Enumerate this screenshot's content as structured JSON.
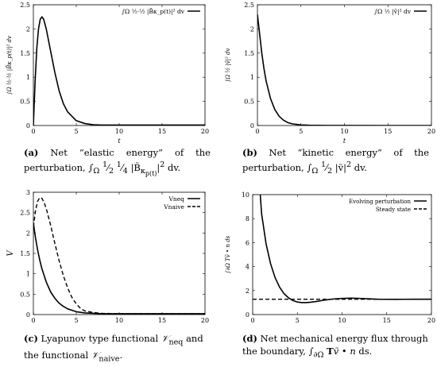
{
  "captions": [
    {
      "label": "(a)",
      "text": "Net “elastic energy” of the perturbation, ∫Ω ½·½ |B̃κ_p(t)|² dv."
    },
    {
      "label": "(b)",
      "text": "Net “kinetic energy” of the perturbation, ∫Ω ½ |ṽ|² dv."
    },
    {
      "label": "(c)",
      "text": "Lyapunov type functional V_neq and the functional V_naive."
    },
    {
      "label": "(d)",
      "text": "Net mechanical energy flux through the boundary, ∫∂Ω Tṽ • n ds."
    }
  ],
  "chart_data": [
    {
      "type": "line",
      "xlabel": "t",
      "ylabel": "∫Ω ½·½ |B̃κ_p(t)|² dv",
      "xlim": [
        0,
        20
      ],
      "ylim": [
        0,
        2.5
      ],
      "xticks": [
        0,
        5,
        10,
        15,
        20
      ],
      "yticks": [
        0,
        0.5,
        1,
        1.5,
        2,
        2.5
      ],
      "ytick_labels": [
        "0",
        "0.5",
        "1",
        "1.5",
        "2",
        "2.5"
      ],
      "legend_position": "top-right",
      "series": [
        {
          "name": "∫Ω ½·½ |B̃κ_p(t)|² dv",
          "style": "solid",
          "x": [
            0,
            0.2,
            0.4,
            0.6,
            0.8,
            1.0,
            1.2,
            1.5,
            2,
            2.5,
            3,
            3.5,
            4,
            5,
            6,
            7,
            8,
            10,
            12,
            15,
            20
          ],
          "y": [
            0,
            0.9,
            1.6,
            2.0,
            2.2,
            2.25,
            2.2,
            2.0,
            1.55,
            1.1,
            0.72,
            0.45,
            0.28,
            0.1,
            0.04,
            0.015,
            0.01,
            0.01,
            0.01,
            0.01,
            0.01
          ]
        }
      ]
    },
    {
      "type": "line",
      "xlabel": "t",
      "ylabel": "∫Ω ½ |ṽ|² dv",
      "xlim": [
        0,
        20
      ],
      "ylim": [
        0,
        2.5
      ],
      "xticks": [
        0,
        5,
        10,
        15,
        20
      ],
      "yticks": [
        0,
        0.5,
        1,
        1.5,
        2,
        2.5
      ],
      "ytick_labels": [
        "0",
        "0.5",
        "1",
        "1.5",
        "2",
        "2.5"
      ],
      "legend_position": "top-right",
      "series": [
        {
          "name": "∫Ω ½ |ṽ|² dv",
          "style": "solid",
          "x": [
            0,
            0.25,
            0.5,
            0.75,
            1,
            1.5,
            2,
            2.5,
            3,
            3.5,
            4,
            5,
            6,
            8,
            10,
            15,
            20
          ],
          "y": [
            2.3,
            1.9,
            1.5,
            1.18,
            0.92,
            0.56,
            0.33,
            0.19,
            0.11,
            0.06,
            0.035,
            0.012,
            0.005,
            0.002,
            0.001,
            0,
            0
          ]
        }
      ]
    },
    {
      "type": "line",
      "xlabel": "t",
      "ylabel": "V",
      "xlim": [
        0,
        20
      ],
      "ylim": [
        0,
        3
      ],
      "xticks": [
        0,
        5,
        10,
        15,
        20
      ],
      "yticks": [
        0,
        0.5,
        1,
        1.5,
        2,
        2.5,
        3
      ],
      "ytick_labels": [
        "0",
        "0.5",
        "1",
        "1.5",
        "2",
        "2.5",
        "3"
      ],
      "legend_position": "top-right",
      "series": [
        {
          "name": "V_neq",
          "style": "solid",
          "x": [
            0,
            0.1,
            0.25,
            0.5,
            0.75,
            1,
            1.5,
            2,
            2.5,
            3,
            3.5,
            4,
            5,
            6,
            8,
            10,
            15,
            20
          ],
          "y": [
            2.25,
            2.1,
            1.88,
            1.58,
            1.33,
            1.12,
            0.8,
            0.56,
            0.4,
            0.28,
            0.2,
            0.14,
            0.07,
            0.04,
            0.02,
            0.02,
            0.02,
            0.02
          ]
        },
        {
          "name": "V_naive",
          "style": "dashed",
          "x": [
            0,
            0.25,
            0.5,
            0.75,
            1,
            1.25,
            1.5,
            2,
            2.5,
            3,
            3.5,
            4,
            4.5,
            5,
            5.5,
            6,
            7,
            8,
            10,
            15,
            20
          ],
          "y": [
            2.15,
            2.55,
            2.78,
            2.87,
            2.85,
            2.75,
            2.6,
            2.2,
            1.75,
            1.32,
            0.95,
            0.65,
            0.42,
            0.26,
            0.15,
            0.09,
            0.05,
            0.03,
            0.02,
            0.02,
            0.02
          ]
        }
      ]
    },
    {
      "type": "line",
      "xlabel": "t",
      "ylabel": "∫∂Ω Tṽ • n ds",
      "xlim": [
        0,
        20
      ],
      "ylim": [
        0,
        10
      ],
      "xticks": [
        0,
        5,
        10,
        15,
        20
      ],
      "yticks": [
        0,
        2,
        4,
        6,
        8,
        10
      ],
      "ytick_labels": [
        "0",
        "2",
        "4",
        "6",
        "8",
        "10"
      ],
      "legend_position": "top-right",
      "series": [
        {
          "name": "Evolving perturbation",
          "style": "solid",
          "x": [
            0.85,
            1,
            1.5,
            2,
            2.5,
            3,
            3.5,
            4,
            4.5,
            5,
            5.5,
            6,
            6.5,
            7,
            8,
            9,
            10,
            11,
            12,
            13,
            14,
            16,
            18,
            20
          ],
          "y": [
            10,
            8.4,
            5.9,
            4.25,
            3.1,
            2.3,
            1.75,
            1.4,
            1.17,
            1.05,
            1.0,
            1.0,
            1.03,
            1.08,
            1.2,
            1.3,
            1.35,
            1.37,
            1.35,
            1.31,
            1.28,
            1.27,
            1.28,
            1.28
          ]
        },
        {
          "name": "Steady state",
          "style": "dashed",
          "x": [
            0,
            20
          ],
          "y": [
            1.28,
            1.28
          ]
        }
      ]
    }
  ]
}
